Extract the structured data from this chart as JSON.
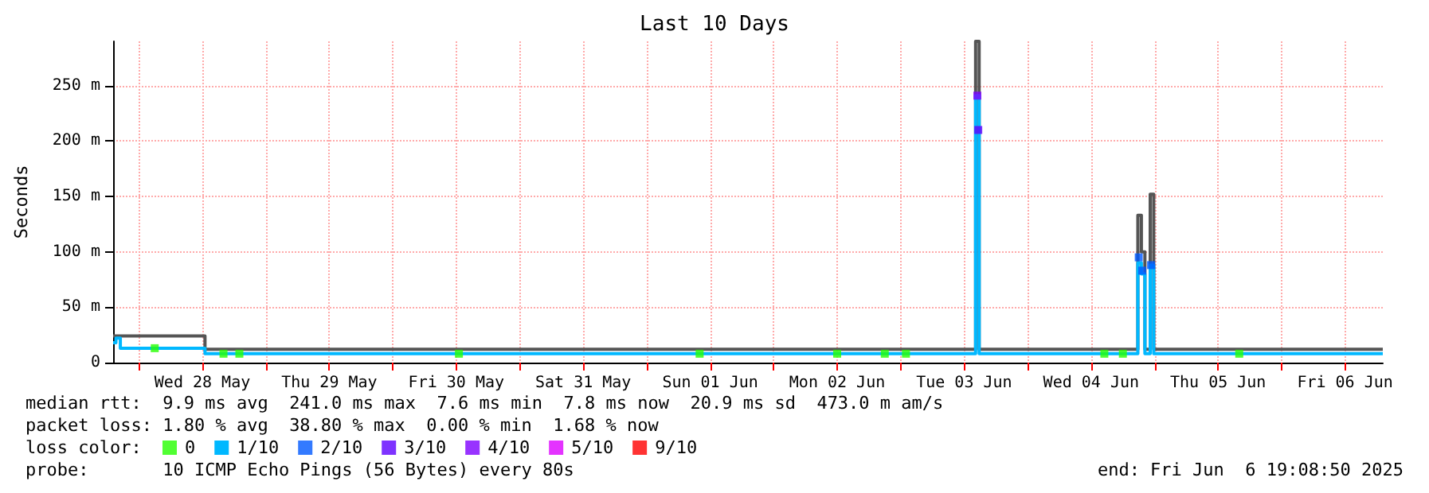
{
  "chart_data": {
    "type": "step",
    "title": "Last 10 Days",
    "ylabel": "Seconds",
    "legend_title": "loss color:",
    "legend": "bottom left",
    "grid": true,
    "xlim": [
      "2025-05-27T19:08",
      "2025-06-06T19:08"
    ],
    "xticks": [
      {
        "value": "2025-05-28T00:00",
        "label": null
      },
      {
        "value": "2025-05-28T12:00",
        "label": "Wed 28 May"
      },
      {
        "value": "2025-05-29T00:00",
        "label": null
      },
      {
        "value": "2025-05-29T12:00",
        "label": "Thu 29 May"
      },
      {
        "value": "2025-05-30T00:00",
        "label": null
      },
      {
        "value": "2025-05-30T12:00",
        "label": "Fri 30 May"
      },
      {
        "value": "2025-05-31T00:00",
        "label": null
      },
      {
        "value": "2025-05-31T12:00",
        "label": "Sat 31 May"
      },
      {
        "value": "2025-06-01T00:00",
        "label": null
      },
      {
        "value": "2025-06-01T12:00",
        "label": "Sun 01 Jun"
      },
      {
        "value": "2025-06-02T00:00",
        "label": null
      },
      {
        "value": "2025-06-02T12:00",
        "label": "Mon 02 Jun"
      },
      {
        "value": "2025-06-03T00:00",
        "label": null
      },
      {
        "value": "2025-06-03T12:00",
        "label": "Tue 03 Jun"
      },
      {
        "value": "2025-06-04T00:00",
        "label": null
      },
      {
        "value": "2025-06-04T12:00",
        "label": "Wed 04 Jun"
      },
      {
        "value": "2025-06-05T00:00",
        "label": null
      },
      {
        "value": "2025-06-05T12:00",
        "label": "Thu 05 Jun"
      },
      {
        "value": "2025-06-06T00:00",
        "label": null
      },
      {
        "value": "2025-06-06T12:00",
        "label": "Fri 06 Jun"
      }
    ],
    "ylim": [
      0,
      290
    ],
    "yticks": [
      0,
      {
        "value": 50,
        "label": "50 m"
      },
      {
        "value": 100,
        "label": "100 m"
      },
      {
        "value": 150,
        "label": "150 m"
      },
      {
        "value": 200,
        "label": "200 m"
      },
      {
        "value": 250,
        "label": "250 m"
      }
    ],
    "series": [
      {
        "marker": "none",
        "color": "#555555",
        "x": [
          "2025-05-27T19:08",
          "2025-05-28T12:30",
          "2025-06-03T14:10",
          "2025-06-03T14:50",
          "2025-06-04T20:50",
          "2025-06-04T21:30",
          "2025-06-04T22:10",
          "2025-06-04T23:10",
          "2025-06-04T23:50",
          "2025-06-06T19:08"
        ],
        "values": [
          24,
          12,
          290,
          12,
          133,
          100,
          12,
          152,
          12,
          12
        ]
      },
      {
        "type": "scatter",
        "name": "0",
        "color": "#26ff00",
        "x": [
          "2025-05-28T03:00",
          "2025-05-28T16:00",
          "2025-05-28T19:00",
          "2025-05-30T12:30",
          "2025-06-01T10:00",
          "2025-06-02T12:00",
          "2025-06-02T21:00",
          "2025-06-03T01:00",
          "2025-06-04T14:30",
          "2025-06-04T18:00",
          "2025-06-05T16:00"
        ],
        "values": [
          13,
          8,
          8,
          8,
          8,
          8,
          8,
          8,
          8,
          8,
          8
        ]
      },
      {
        "marker": "none",
        "name": "1/10",
        "color": "#00b8ff",
        "x": [
          "2025-05-27T19:08",
          "2025-05-27T19:40",
          "2025-05-27T20:30",
          "2025-05-28T12:30",
          "2025-06-03T14:10",
          "2025-06-03T14:50",
          "2025-06-04T20:50",
          "2025-06-04T21:30",
          "2025-06-04T22:10",
          "2025-06-04T23:10",
          "2025-06-04T23:50",
          "2025-06-06T19:08"
        ],
        "values": [
          18,
          22,
          13,
          8,
          241,
          8,
          90,
          80,
          8,
          88,
          8,
          8
        ]
      },
      {
        "type": "scatter",
        "name": "2/10",
        "color": "#0059ff",
        "x": [
          "2025-06-04T21:00",
          "2025-06-04T21:40",
          "2025-06-04T23:20"
        ],
        "values": [
          95,
          83,
          88
        ]
      },
      {
        "type": "scatter",
        "name": "3/10",
        "color": "#5e00ff",
        "x": [
          "2025-06-03T14:40"
        ],
        "values": [
          210
        ]
      },
      {
        "type": "scatter",
        "name": "4/10",
        "color": "#7e00ff",
        "x": [
          "2025-06-03T14:30"
        ],
        "values": [
          241
        ]
      },
      {
        "type": "scatter",
        "name": "5/10",
        "color": "#dd00ff"
      },
      {
        "type": "scatter",
        "name": "9/10",
        "color": "#ff0000"
      }
    ],
    "marker": "square",
    "annotations": [
      "median rtt:  9.9 ms avg  241.0 ms max  7.6 ms min  7.8 ms now  20.9 ms sd  473.0 m am/s",
      "packet loss: 1.80 % avg  38.80 % max  0.00 % min  1.68 % now",
      "probe:       10 ICMP Echo Pings (56 Bytes) every 80s",
      "end: Fri Jun  6 19:08:50 2025"
    ]
  }
}
